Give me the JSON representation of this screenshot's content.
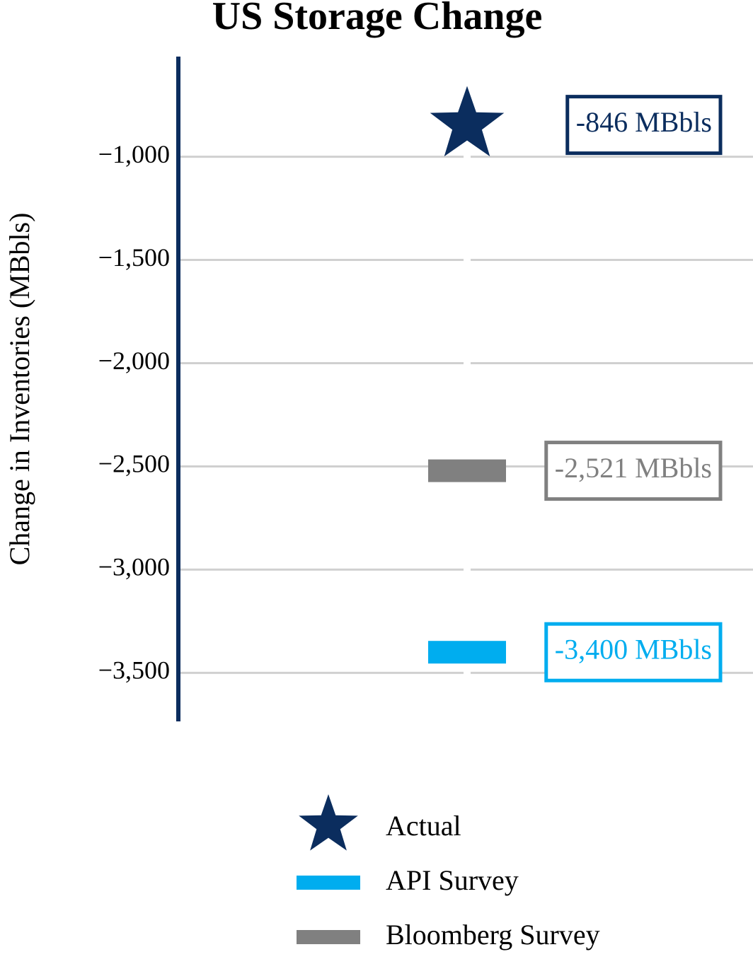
{
  "chart_data": {
    "type": "scatter",
    "title": "US Storage Change",
    "y_label": "Change in Inventories (MBbls)",
    "ylim": [
      -3735,
      -515
    ],
    "yticks": [
      {
        "value": -1000,
        "label": "−1,000"
      },
      {
        "value": -1500,
        "label": "−1,500"
      },
      {
        "value": -2000,
        "label": "−2,000"
      },
      {
        "value": -2500,
        "label": "−2,500"
      },
      {
        "value": -3000,
        "label": "−3,000"
      },
      {
        "value": -3500,
        "label": "−3,500"
      }
    ],
    "grid": true,
    "legend": "bottom",
    "series": [
      {
        "name": "Actual",
        "color": "#0b2d5e",
        "marker": "star",
        "values": [
          -846
        ],
        "value_labels": [
          "-846 MBbls"
        ]
      },
      {
        "name": "API Survey",
        "color": "#00adef",
        "marker": "dash",
        "values": [
          -3400
        ],
        "value_labels": [
          "-3,400 MBbls"
        ]
      },
      {
        "name": "Bloomberg Survey",
        "color": "#808080",
        "marker": "dash",
        "values": [
          -2521
        ],
        "value_labels": [
          "-2,521 MBbls"
        ]
      }
    ]
  }
}
